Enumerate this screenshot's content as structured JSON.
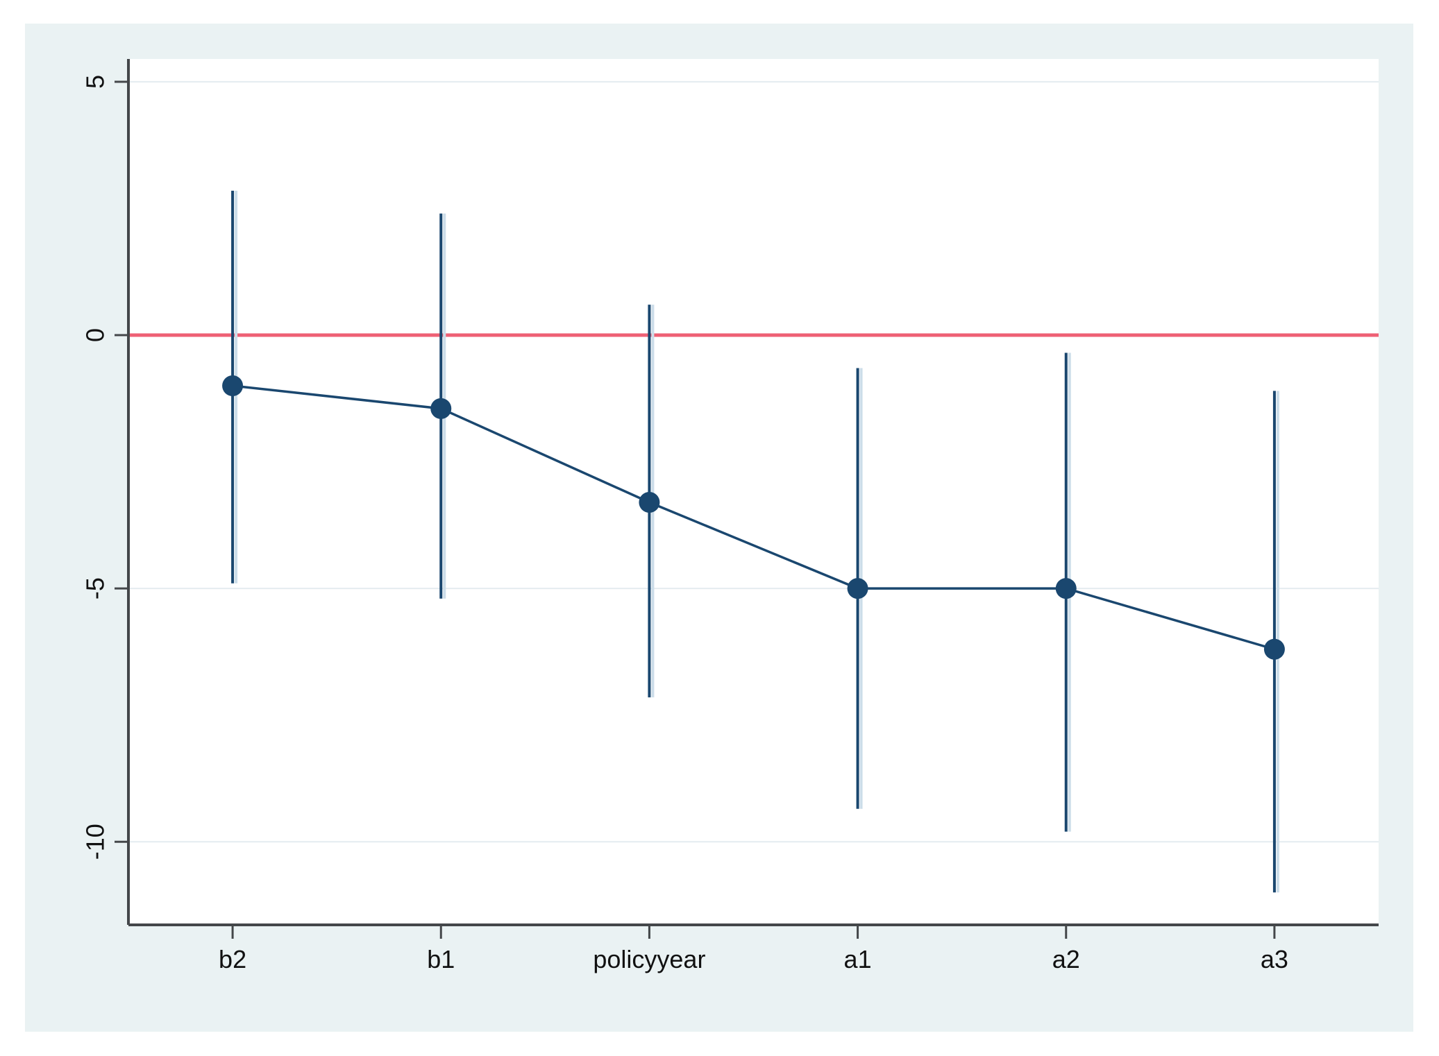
{
  "figure": {
    "page_background": "#ffffff",
    "card_background": "#eaf2f3",
    "plot_background": "#ffffff"
  },
  "chart_data": {
    "type": "scatter",
    "subtype": "coefficient-plot-with-confidence-intervals",
    "title": "",
    "xlabel": "",
    "ylabel": "",
    "categories": [
      "b2",
      "b1",
      "policyyear",
      "a1",
      "a2",
      "a3"
    ],
    "series": [
      {
        "name": "coefficient",
        "values": [
          -1.0,
          -1.45,
          -3.3,
          -5.0,
          -5.0,
          -6.2
        ],
        "ci_low": [
          -4.9,
          -5.2,
          -7.15,
          -9.35,
          -9.8,
          -11.0
        ],
        "ci_high": [
          2.85,
          2.4,
          0.6,
          -0.65,
          -0.35,
          -1.1
        ]
      }
    ],
    "connected": true,
    "yticks": [
      5,
      0,
      -5,
      -10
    ],
    "ytick_labels": [
      "5",
      "0",
      "-5",
      "-10"
    ],
    "ytick_labels_rotated": true,
    "ylim": [
      -11.64,
      5.45
    ],
    "reference_line_y": 0,
    "grid": true,
    "legend_position": "none",
    "colors": {
      "marker": "#1a476f",
      "ci_line": "#1a476f",
      "ci_shadow": "#ccdde9",
      "connect_line": "#1a476f",
      "reference_line": "#ee6075",
      "gridline": "#e4ecf0",
      "axis": "#44474a",
      "tick_label": "#111111"
    }
  }
}
